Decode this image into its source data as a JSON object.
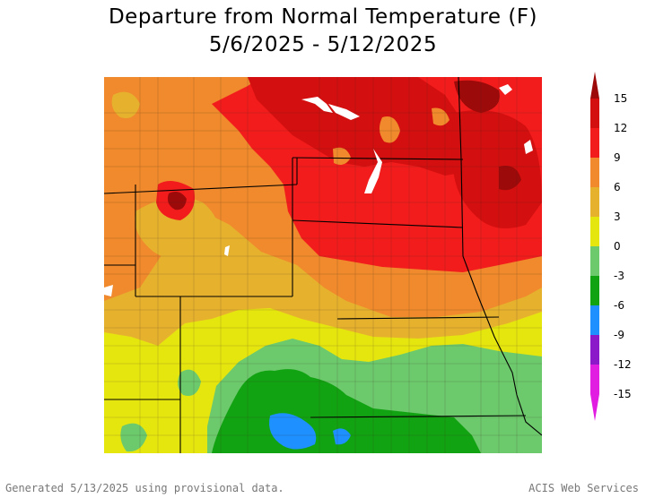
{
  "title_line1": "Departure from Normal Temperature (F)",
  "title_line2": "5/6/2025 - 5/12/2025",
  "legend": {
    "ticks": [
      "15",
      "12",
      "9",
      "6",
      "3",
      "0",
      "-3",
      "-6",
      "-9",
      "-12",
      "-15"
    ],
    "colors": [
      "#9c0a0a",
      "#d40f0f",
      "#f21c1c",
      "#f08a2c",
      "#e6b22e",
      "#e6e60f",
      "#6cc96c",
      "#12a312",
      "#1e90ff",
      "#8b18c9",
      "#e21de2"
    ]
  },
  "footer": {
    "generated": "Generated 5/13/2025 using provisional data.",
    "credit": "ACIS Web Services"
  }
}
